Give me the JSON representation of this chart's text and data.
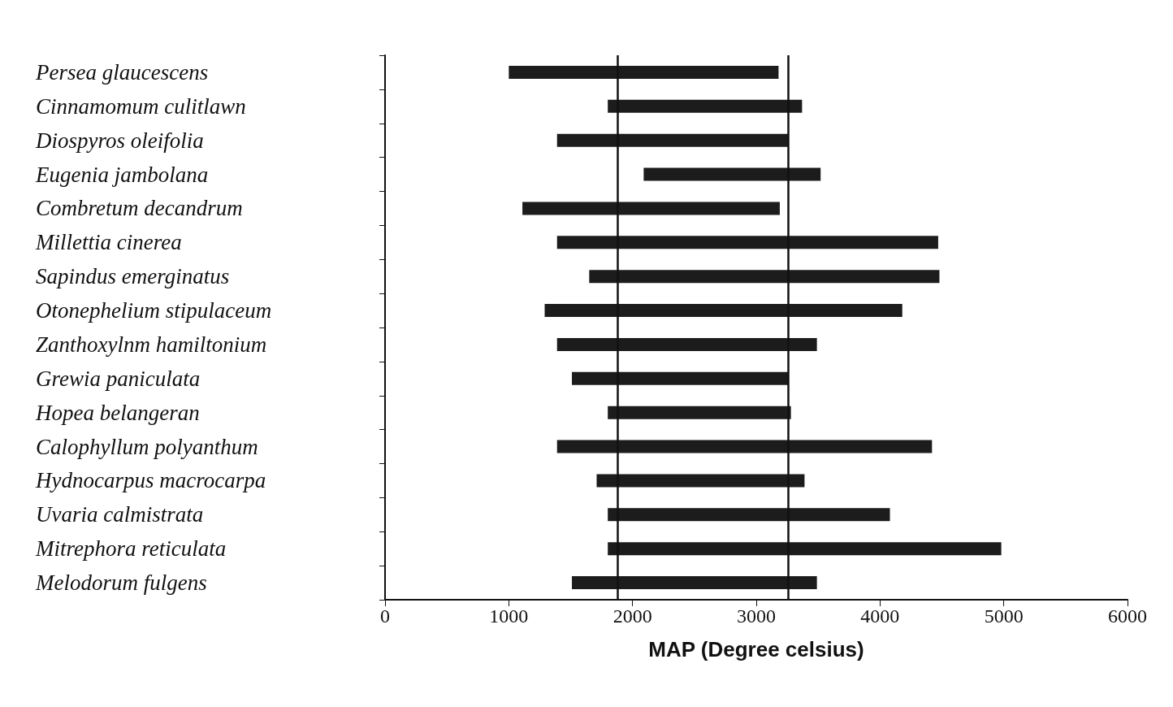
{
  "chart_data": {
    "type": "bar",
    "orientation": "horizontal",
    "xlabel": "MAP (Degree celsius)",
    "categories": [
      "Persea glaucescens",
      "Cinnamomum culitlawn",
      "Diospyros oleifolia",
      "Eugenia jambolana",
      "Combretum decandrum",
      "Millettia cinerea",
      "Sapindus emerginatus",
      "Otonephelium stipulaceum",
      "Zanthoxylnm hamiltonium",
      "Grewia paniculata",
      "Hopea belangeran",
      "Calophyllum polyanthum",
      "Hydnocarpus macrocarpa",
      "Uvaria calmistrata",
      "Mitrephora reticulata",
      "Melodorum fulgens"
    ],
    "base": [
      1000,
      1800,
      1390,
      2090,
      1110,
      1390,
      1650,
      1290,
      1390,
      1510,
      1800,
      1390,
      1710,
      1800,
      1800,
      1510
    ],
    "values": [
      2180,
      1570,
      1870,
      1430,
      2080,
      3080,
      2830,
      2890,
      2100,
      1750,
      1480,
      3030,
      1680,
      2280,
      3180,
      1980
    ],
    "color": "#1c1c1c",
    "xlim": [
      0,
      6000
    ],
    "xticks": [
      0,
      1000,
      2000,
      3000,
      4000,
      5000,
      6000
    ],
    "ref_lines": [
      {
        "axis": "x",
        "value": 1880,
        "label": null,
        "color": "#111111"
      },
      {
        "axis": "x",
        "value": 3260,
        "label": null,
        "color": "#111111"
      }
    ],
    "grid": false
  }
}
